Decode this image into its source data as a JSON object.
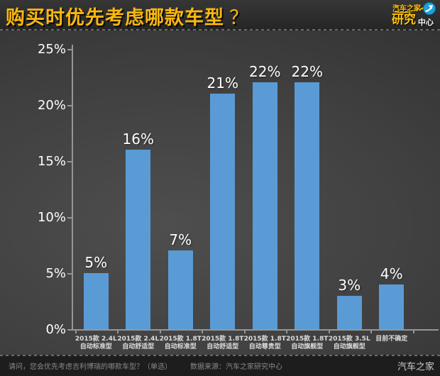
{
  "header": {
    "title": "购买时优先考虑哪款车型",
    "question_mark": "？",
    "logo": {
      "brand": "汽车之家",
      "line2_main": "研究",
      "line2_sub": "中心",
      "brand_color": "#FFC20E",
      "icon": "arrow-swoosh-icon",
      "icon_color": "#1E9FD8"
    }
  },
  "chart_data": {
    "type": "bar",
    "title": "购买时优先考虑哪款车型？",
    "categories": [
      [
        "2015款 2.4L",
        "自动标准型"
      ],
      [
        "2015款 2.4L",
        "自动舒适型"
      ],
      [
        "2015款 1.8T",
        "自动标准型"
      ],
      [
        "2015款 1.8T",
        "自动舒适型"
      ],
      [
        "2015款 1.8T",
        "自动尊贵型"
      ],
      [
        "2015款 1.8T",
        "自动旗舰型"
      ],
      [
        "2015款 3.5L",
        "自动旗舰型"
      ],
      [
        "目前不确定"
      ]
    ],
    "values": [
      5,
      16,
      7,
      21,
      22,
      22,
      3,
      4
    ],
    "value_labels": [
      "5%",
      "16%",
      "7%",
      "21%",
      "22%",
      "22%",
      "3%",
      "4%"
    ],
    "unit": "%",
    "xlabel": "",
    "ylabel": "",
    "ylim": [
      0,
      25
    ],
    "yticks": [
      0,
      5,
      10,
      15,
      20,
      25
    ],
    "ytick_labels": [
      "0%",
      "5%",
      "10%",
      "15%",
      "20%",
      "25%"
    ],
    "grid": false,
    "legend": "none",
    "bar_color": "#5B9BD5",
    "axis_color": "#969696",
    "value_label_color": "#FFFFFF",
    "category_label_color": "#DCDCDC"
  },
  "footer": {
    "question": "请问，您会优先考虑吉利博瑞的哪款车型？（单选）",
    "source": "数据来源：汽车之家研究中心",
    "watermark": "汽车之家"
  },
  "colors": {
    "title": "#FBB80F",
    "bar": "#5B9BD5",
    "header_bg": "#2E2E2E",
    "footer_bg": "#1D1D1D",
    "chart_bg_center": "#4E4E4E",
    "chart_bg_edge": "#2B2B2B"
  }
}
